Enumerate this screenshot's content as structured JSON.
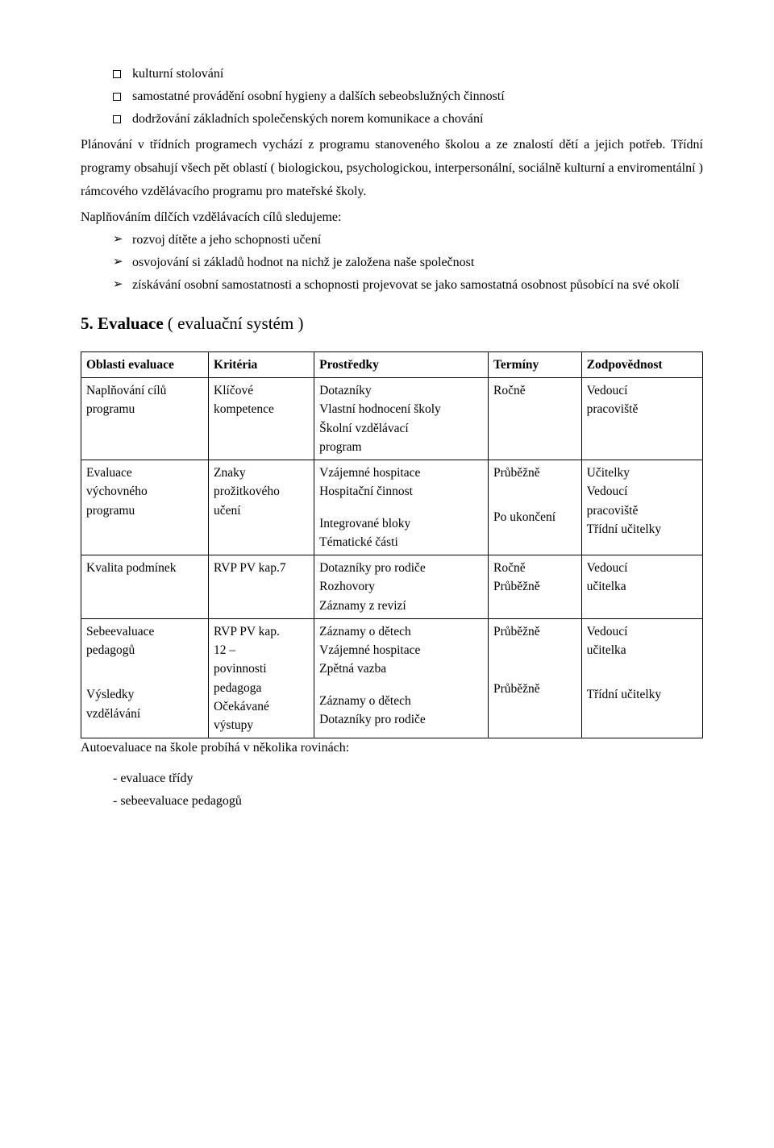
{
  "bullets_square": [
    "kulturní stolování",
    "samostatné provádění osobní hygieny a dalších sebeobslužných činností",
    "dodržování základních společenských norem komunikace a chování"
  ],
  "paragraph": "Plánování v třídních programech vychází z programu stanoveného školou a ze znalostí dětí a jejich potřeb. Třídní programy obsahují všech pět oblastí ( biologickou, psychologickou, interpersonální, sociálně kulturní a enviromentální ) rámcového vzdělávacího programu pro mateřské školy.",
  "sub_intro": "Naplňováním dílčích vzdělávacích cílů sledujeme:",
  "bullets_arrow": [
    "rozvoj dítěte a jeho schopnosti učení",
    "osvojování si základů hodnot na nichž je založena naše společnost",
    "získávání osobní samostatnosti a schopnosti projevovat se jako samostatná osobnost působící na své okolí"
  ],
  "section_title_num": "5.",
  "section_title_main": "Evaluace",
  "section_title_paren": "( evaluační systém )",
  "table": {
    "headers": [
      "Oblasti evaluace",
      "Kritéria",
      "Prostředky",
      "Termíny",
      "Zodpovědnost"
    ],
    "rows": [
      {
        "c1": [
          "Naplňování cílů",
          "programu"
        ],
        "c2": [
          "Klíčové",
          "kompetence"
        ],
        "c3": [
          "Dotazníky",
          "Vlastní hodnocení školy",
          "Školní vzdělávací",
          "program"
        ],
        "c4": [
          "Ročně"
        ],
        "c5": [
          "Vedoucí",
          "pracoviště"
        ]
      },
      {
        "c1": [
          "Evaluace",
          "výchovného",
          "programu"
        ],
        "c2": [
          "Znaky",
          "prožitkového",
          "učení"
        ],
        "c3": [
          "Vzájemné hospitace",
          "Hospitační činnost",
          "",
          "Integrované bloky",
          "Tématické části"
        ],
        "c4": [
          "Průběžně",
          "",
          "",
          "Po ukončení"
        ],
        "c5": [
          "Učitelky",
          "Vedoucí",
          "pracoviště",
          "Třídní učitelky"
        ]
      },
      {
        "c1": [
          "Kvalita podmínek"
        ],
        "c2": [
          "RVP PV kap.7"
        ],
        "c3": [
          "Dotazníky pro rodiče",
          "Rozhovory",
          "Záznamy z revizí"
        ],
        "c4": [
          "Ročně",
          "Průběžně"
        ],
        "c5": [
          "Vedoucí",
          "učitelka"
        ]
      },
      {
        "c1": [
          "Sebeevaluace",
          "pedagogů",
          "",
          "",
          "Výsledky",
          "vzdělávání"
        ],
        "c2": [
          "RVP PV kap.",
          "12 –",
          "povinnosti",
          "pedagoga",
          "Očekávané",
          "výstupy"
        ],
        "c3": [
          "Záznamy o dětech",
          "Vzájemné hospitace",
          "Zpětná vazba",
          "",
          "Záznamy o dětech",
          "Dotazníky pro rodiče"
        ],
        "c4": [
          "Průběžně",
          "",
          "",
          "",
          "Průběžně"
        ],
        "c5": [
          "Vedoucí",
          "učitelka",
          "",
          "",
          "Třídní učitelky"
        ]
      }
    ]
  },
  "footer_note": "Autoevaluace na škole probíhá v několika rovinách:",
  "dash_items": [
    "- evaluace třídy",
    "- sebeevaluace pedagogů"
  ]
}
